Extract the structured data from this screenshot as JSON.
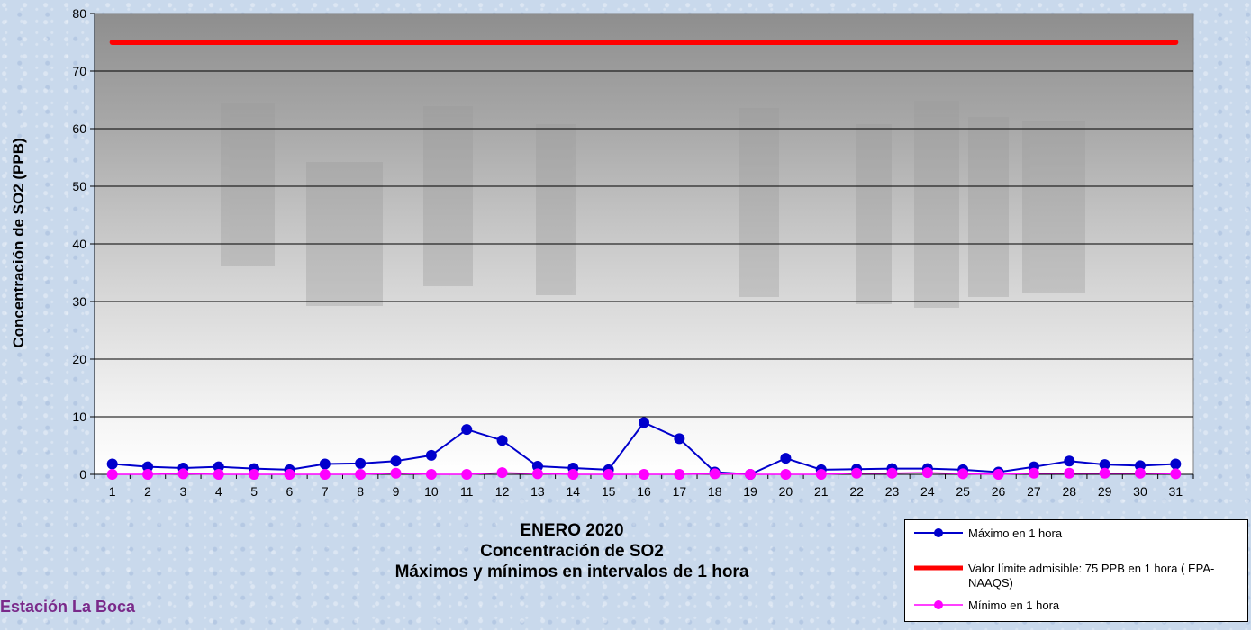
{
  "chart_data": {
    "type": "line",
    "x": [
      1,
      2,
      3,
      4,
      5,
      6,
      7,
      8,
      9,
      10,
      11,
      12,
      13,
      14,
      15,
      16,
      17,
      18,
      19,
      20,
      21,
      22,
      23,
      24,
      25,
      26,
      27,
      28,
      29,
      30,
      31
    ],
    "series": [
      {
        "name": "Máximo en 1 hora",
        "color": "#0000cc",
        "marker": "circle",
        "values": [
          1.8,
          1.3,
          1.1,
          1.3,
          1.0,
          0.8,
          1.8,
          1.9,
          2.3,
          3.3,
          7.8,
          5.9,
          1.4,
          1.1,
          0.8,
          9.0,
          6.2,
          0.4,
          0.0,
          2.8,
          0.8,
          0.9,
          1.0,
          1.0,
          0.8,
          0.4,
          1.3,
          2.3,
          1.7,
          1.5,
          1.8
        ]
      },
      {
        "name": "Valor límite admisible: 75 PPB en 1 hora ( EPA-NAAQS)",
        "color": "#ff0000",
        "marker": "none",
        "values": [
          75,
          75,
          75,
          75,
          75,
          75,
          75,
          75,
          75,
          75,
          75,
          75,
          75,
          75,
          75,
          75,
          75,
          75,
          75,
          75,
          75,
          75,
          75,
          75,
          75,
          75,
          75,
          75,
          75,
          75,
          75
        ]
      },
      {
        "name": "Mínimo en 1 hora",
        "color": "#ff00ff",
        "marker": "circle",
        "values": [
          0.0,
          0.0,
          0.1,
          0.0,
          0.0,
          0.0,
          0.0,
          0.0,
          0.2,
          0.0,
          0.0,
          0.3,
          0.1,
          0.0,
          0.0,
          0.0,
          0.0,
          0.1,
          0.0,
          0.0,
          0.0,
          0.2,
          0.2,
          0.3,
          0.1,
          0.0,
          0.2,
          0.2,
          0.2,
          0.2,
          0.1
        ]
      }
    ],
    "ylabel": "Concentración de SO2 (PPB)",
    "ylim": [
      0,
      80
    ],
    "yticks": [
      0,
      10,
      20,
      30,
      40,
      50,
      60,
      70,
      80
    ],
    "grid": true,
    "legend_position": "bottom-right"
  },
  "titles": {
    "line1": "ENERO 2020",
    "line2": "Concentración de SO2",
    "line3": "Máximos y mínimos en intervalos de 1 hora"
  },
  "station": "Estación La Boca"
}
